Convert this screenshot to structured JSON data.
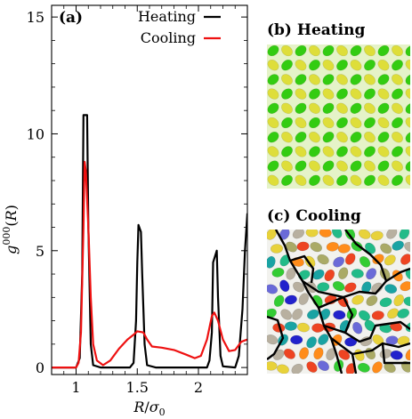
{
  "chart_data": [
    {
      "panel": "(a)",
      "type": "line",
      "xlabel": "R/σ0",
      "ylabel": "g000(R)",
      "xlim": [
        0.8,
        2.4
      ],
      "ylim": [
        -0.3,
        15.5
      ],
      "x_ticks": [
        "1",
        "1.5",
        "2"
      ],
      "y_ticks": [
        "0",
        "5",
        "10",
        "15"
      ],
      "x_tick_values": [
        1,
        1.5,
        2
      ],
      "y_tick_values": [
        0,
        5,
        10,
        15
      ],
      "legend_position": "top-right",
      "series": [
        {
          "name": "Heating",
          "color": "#000000",
          "points": [
            [
              0.8,
              0.0
            ],
            [
              1.0,
              0.0
            ],
            [
              1.03,
              0.4
            ],
            [
              1.05,
              4.0
            ],
            [
              1.06,
              10.8
            ],
            [
              1.09,
              10.8
            ],
            [
              1.1,
              6.0
            ],
            [
              1.12,
              1.0
            ],
            [
              1.14,
              0.1
            ],
            [
              1.2,
              0.0
            ],
            [
              1.44,
              0.0
            ],
            [
              1.47,
              0.2
            ],
            [
              1.49,
              2.0
            ],
            [
              1.5,
              4.5
            ],
            [
              1.51,
              6.1
            ],
            [
              1.53,
              5.8
            ],
            [
              1.54,
              4.0
            ],
            [
              1.56,
              1.0
            ],
            [
              1.58,
              0.1
            ],
            [
              1.65,
              0.0
            ],
            [
              2.07,
              0.0
            ],
            [
              2.09,
              0.3
            ],
            [
              2.11,
              1.5
            ],
            [
              2.12,
              4.5
            ],
            [
              2.15,
              5.0
            ],
            [
              2.16,
              3.0
            ],
            [
              2.18,
              0.5
            ],
            [
              2.2,
              0.05
            ],
            [
              2.3,
              0.0
            ],
            [
              2.33,
              0.5
            ],
            [
              2.36,
              2.5
            ],
            [
              2.38,
              5.0
            ],
            [
              2.4,
              6.6
            ]
          ]
        },
        {
          "name": "Cooling",
          "color": "#ee1111",
          "points": [
            [
              0.8,
              0.0
            ],
            [
              1.0,
              0.0
            ],
            [
              1.02,
              0.2
            ],
            [
              1.04,
              1.5
            ],
            [
              1.06,
              6.0
            ],
            [
              1.07,
              8.8
            ],
            [
              1.08,
              8.4
            ],
            [
              1.1,
              6.0
            ],
            [
              1.12,
              3.0
            ],
            [
              1.14,
              1.0
            ],
            [
              1.17,
              0.3
            ],
            [
              1.22,
              0.1
            ],
            [
              1.28,
              0.3
            ],
            [
              1.35,
              0.8
            ],
            [
              1.42,
              1.2
            ],
            [
              1.47,
              1.4
            ],
            [
              1.5,
              1.55
            ],
            [
              1.55,
              1.5
            ],
            [
              1.58,
              1.2
            ],
            [
              1.62,
              0.9
            ],
            [
              1.7,
              0.85
            ],
            [
              1.8,
              0.75
            ],
            [
              1.9,
              0.55
            ],
            [
              1.97,
              0.4
            ],
            [
              2.02,
              0.5
            ],
            [
              2.07,
              1.2
            ],
            [
              2.11,
              2.2
            ],
            [
              2.13,
              2.35
            ],
            [
              2.16,
              2.0
            ],
            [
              2.2,
              1.2
            ],
            [
              2.25,
              0.7
            ],
            [
              2.3,
              0.75
            ],
            [
              2.35,
              1.1
            ],
            [
              2.4,
              1.2
            ]
          ]
        }
      ]
    }
  ],
  "panels": {
    "a_label": "(a)",
    "b_label": "(b) Heating",
    "c_label": "(c) Cooling"
  },
  "colors": {
    "heating_line": "#000000",
    "cooling_line": "#ee1111",
    "heating_snapshot_bg": "#e5f3c8",
    "heating_green": "#33cc11",
    "heating_yellow": "#dede3a",
    "cooling_snapshot_bg": "#f2f2ee"
  }
}
